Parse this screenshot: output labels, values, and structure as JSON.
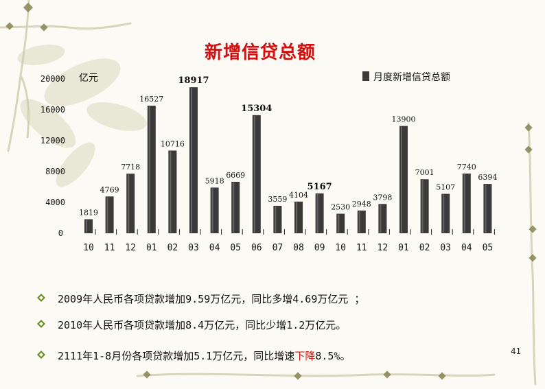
{
  "slide": {
    "title": "新增信贷总额",
    "page_number": "41"
  },
  "bullets": [
    {
      "text": "2009年人民币各项贷款增加9.59万亿元，同比多增4.69万亿元 ；"
    },
    {
      "text": "2010年人民币各项贷款增加8.4万亿元，同比少增1.2万亿元。"
    },
    {
      "text_before": "2111年1-8月份各项贷款增加5.1万亿元，同比增速",
      "text_red": "下降",
      "text_after": "8.5%。"
    }
  ],
  "colors": {
    "title": "#d01010",
    "bar_fill": "#3a3a3a",
    "bar_highlight": "#b8b8b8",
    "emphasis_red": "#d01010",
    "diamond": "#6b8e23"
  },
  "chart_data": {
    "type": "bar",
    "unit_label": "亿元",
    "legend": [
      "月度新增信贷总额"
    ],
    "legend_position": "top-right",
    "grid": false,
    "ylim": [
      0,
      20000
    ],
    "yticks": [
      "0",
      "4000",
      "8000",
      "12000",
      "16000",
      "20000"
    ],
    "categories": [
      "10",
      "11",
      "12",
      "01",
      "02",
      "03",
      "04",
      "05",
      "06",
      "07",
      "08",
      "09",
      "10",
      "11",
      "12",
      "01",
      "02",
      "03",
      "04",
      "05"
    ],
    "series": [
      {
        "name": "月度新增信贷总额",
        "values": [
          1819,
          4769,
          7718,
          16527,
          10716,
          18917,
          5918,
          6669,
          15304,
          3559,
          4104,
          5167,
          2530,
          2948,
          3798,
          13900,
          7001,
          5107,
          7740,
          6394
        ]
      }
    ],
    "data_labels": [
      "1819",
      "4769",
      "7718",
      "16527",
      "10716",
      "18917",
      "5918",
      "6669",
      "15304",
      "3559",
      "4104",
      "5167",
      "2530",
      "2948",
      "3798",
      "13900",
      "7001",
      "5107",
      "7740",
      "6394"
    ],
    "bold_labels": [
      5,
      8,
      11
    ]
  }
}
